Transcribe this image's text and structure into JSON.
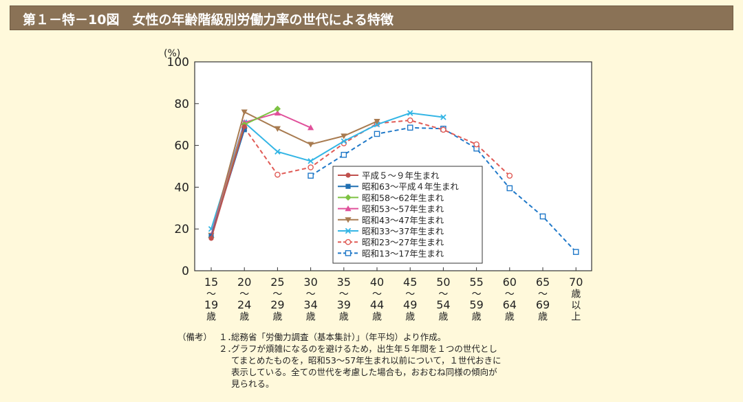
{
  "header": {
    "title": "第１－特－10図　女性の年齢階級別労働力率の世代による特徴"
  },
  "chart_data": {
    "type": "line",
    "title": "女性の年齢階級別労働力率の世代による特徴",
    "ylabel": "(%)",
    "ylim": [
      0,
      100
    ],
    "yticks": [
      "0",
      "20",
      "40",
      "60",
      "80",
      "100"
    ],
    "categories": [
      [
        "15",
        "～",
        "19",
        "歳"
      ],
      [
        "20",
        "～",
        "24",
        "歳"
      ],
      [
        "25",
        "～",
        "29",
        "歳"
      ],
      [
        "30",
        "～",
        "34",
        "歳"
      ],
      [
        "35",
        "～",
        "39",
        "歳"
      ],
      [
        "40",
        "～",
        "44",
        "歳"
      ],
      [
        "45",
        "～",
        "49",
        "歳"
      ],
      [
        "50",
        "～",
        "54",
        "歳"
      ],
      [
        "55",
        "～",
        "59",
        "歳"
      ],
      [
        "60",
        "～",
        "64",
        "歳"
      ],
      [
        "65",
        "～",
        "69",
        "歳"
      ],
      [
        "70",
        "歳",
        "以",
        "上"
      ]
    ],
    "legend_position": "center-right",
    "series": [
      {
        "name": "平成５～９年生まれ",
        "color": "#c0504d",
        "marker": "circle-filled",
        "dash": false,
        "values": [
          15.5,
          69,
          null,
          null,
          null,
          null,
          null,
          null,
          null,
          null,
          null,
          null
        ]
      },
      {
        "name": "昭和63～平成４年生まれ",
        "color": "#1f6fb2",
        "marker": "square-filled",
        "dash": false,
        "values": [
          16.5,
          67.5,
          null,
          null,
          null,
          null,
          null,
          null,
          null,
          null,
          null,
          null
        ]
      },
      {
        "name": "昭和58～62年生まれ",
        "color": "#7dc242",
        "marker": "diamond",
        "dash": false,
        "values": [
          16,
          70,
          77.5,
          null,
          null,
          null,
          null,
          null,
          null,
          null,
          null,
          null
        ]
      },
      {
        "name": "昭和53～57年生まれ",
        "color": "#e0509a",
        "marker": "triangle",
        "dash": false,
        "values": [
          17,
          71,
          75.5,
          68.5,
          null,
          null,
          null,
          null,
          null,
          null,
          null,
          null
        ]
      },
      {
        "name": "昭和43～47年生まれ",
        "color": "#a87b50",
        "marker": "triangle-down",
        "dash": false,
        "values": [
          17,
          76,
          68,
          60.5,
          64.5,
          71.5,
          null,
          null,
          null,
          null,
          null,
          null
        ]
      },
      {
        "name": "昭和33～37年生まれ",
        "color": "#33b5e5",
        "marker": "x",
        "dash": false,
        "values": [
          20,
          71,
          57,
          52.5,
          62,
          70,
          75.5,
          73.5,
          null,
          null,
          null,
          null
        ]
      },
      {
        "name": "昭和23～27年生まれ",
        "color": "#e05a55",
        "marker": "circle-open",
        "dash": true,
        "values": [
          null,
          68.5,
          46,
          49.5,
          61,
          70.5,
          72,
          67.5,
          60.5,
          45.5,
          null,
          null
        ]
      },
      {
        "name": "昭和13～17年生まれ",
        "color": "#1f78c8",
        "marker": "square-open",
        "dash": true,
        "values": [
          null,
          null,
          null,
          45.5,
          55.5,
          65.5,
          68.5,
          68,
          58.5,
          39.5,
          26,
          9
        ]
      }
    ]
  },
  "notes": {
    "label": "（備考）",
    "items": [
      {
        "num": "１．",
        "lines": [
          "総務省「労働力調査（基本集計）」（年平均）より作成。"
        ]
      },
      {
        "num": "２．",
        "lines": [
          "グラフが煩雑になるのを避けるため，出生年５年間を１つの世代とし",
          "てまとめたものを，昭和53～57年生まれ以前について，１世代おきに",
          "表示している。全ての世代を考慮した場合も，おおむね同様の傾向が",
          "見られる。"
        ]
      }
    ]
  }
}
